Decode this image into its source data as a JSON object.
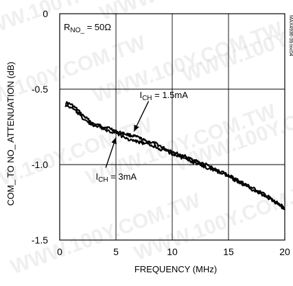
{
  "chart_data": {
    "type": "line",
    "title": "",
    "xlabel": "FREQUENCY (MHz)",
    "ylabel": "COM_ TO NO_ ATTENUATION (dB)",
    "xlim": [
      0,
      20
    ],
    "ylim": [
      -1.5,
      0
    ],
    "x_ticks": [
      0,
      5,
      10,
      15,
      20
    ],
    "x_tick_labels": [
      "0",
      "5",
      "10",
      "15",
      "20"
    ],
    "y_ticks": [
      0,
      -0.5,
      -1.0,
      -1.5
    ],
    "y_tick_labels": [
      "0",
      "-0.5",
      "-1.0",
      "-1.5"
    ],
    "grid": true,
    "legend": "none",
    "line_color": "#000000",
    "condition": {
      "pre": "R",
      "sub": "NO_",
      "post": " = 50Ω"
    },
    "figure_id": "MAX4936-39 toc04",
    "watermarks": [
      "WWW.100Y.COM.TW"
    ],
    "series": [
      {
        "label": {
          "pre": "I",
          "sub": "CH",
          "post": " = 1.5mA"
        },
        "x": [
          0.5,
          1.0,
          1.5,
          2.0,
          2.5,
          3.0,
          3.5,
          4.0,
          4.5,
          5.0,
          5.5,
          6.0,
          6.5,
          7.0,
          7.5,
          8.0,
          8.5,
          9.0,
          9.5,
          10.0,
          10.5,
          11.0,
          11.5,
          12.0,
          12.5,
          13.0,
          13.5,
          14.0,
          14.5,
          15.0,
          15.5,
          16.0,
          16.5,
          17.0,
          17.5,
          18.0,
          18.5,
          19.0,
          19.5,
          20.0
        ],
        "values": [
          -0.59,
          -0.6,
          -0.63,
          -0.67,
          -0.7,
          -0.73,
          -0.74,
          -0.75,
          -0.76,
          -0.78,
          -0.79,
          -0.8,
          -0.81,
          -0.82,
          -0.84,
          -0.85,
          -0.86,
          -0.88,
          -0.9,
          -0.91,
          -0.93,
          -0.94,
          -0.96,
          -0.97,
          -0.99,
          -1.0,
          -1.02,
          -1.04,
          -1.05,
          -1.07,
          -1.09,
          -1.11,
          -1.13,
          -1.15,
          -1.17,
          -1.19,
          -1.21,
          -1.24,
          -1.26,
          -1.29
        ]
      },
      {
        "label": {
          "pre": "I",
          "sub": "CH",
          "post": " = 3mA"
        },
        "x": [
          0.5,
          1.0,
          1.5,
          2.0,
          2.5,
          3.0,
          3.5,
          4.0,
          4.5,
          5.0,
          5.5,
          6.0,
          6.5,
          7.0,
          7.5,
          8.0,
          8.5,
          9.0,
          9.5,
          10.0,
          10.5,
          11.0,
          11.5,
          12.0,
          12.5,
          13.0,
          13.5,
          14.0,
          14.5,
          15.0,
          15.5,
          16.0,
          16.5,
          17.0,
          17.5,
          18.0,
          18.5,
          19.0,
          19.5,
          20.0
        ],
        "values": [
          -0.61,
          -0.62,
          -0.65,
          -0.69,
          -0.72,
          -0.74,
          -0.75,
          -0.77,
          -0.78,
          -0.79,
          -0.81,
          -0.83,
          -0.84,
          -0.85,
          -0.86,
          -0.87,
          -0.88,
          -0.9,
          -0.91,
          -0.93,
          -0.94,
          -0.96,
          -0.97,
          -0.99,
          -1.0,
          -1.02,
          -1.03,
          -1.05,
          -1.06,
          -1.08,
          -1.1,
          -1.12,
          -1.14,
          -1.16,
          -1.18,
          -1.2,
          -1.22,
          -1.24,
          -1.27,
          -1.3
        ]
      }
    ]
  }
}
